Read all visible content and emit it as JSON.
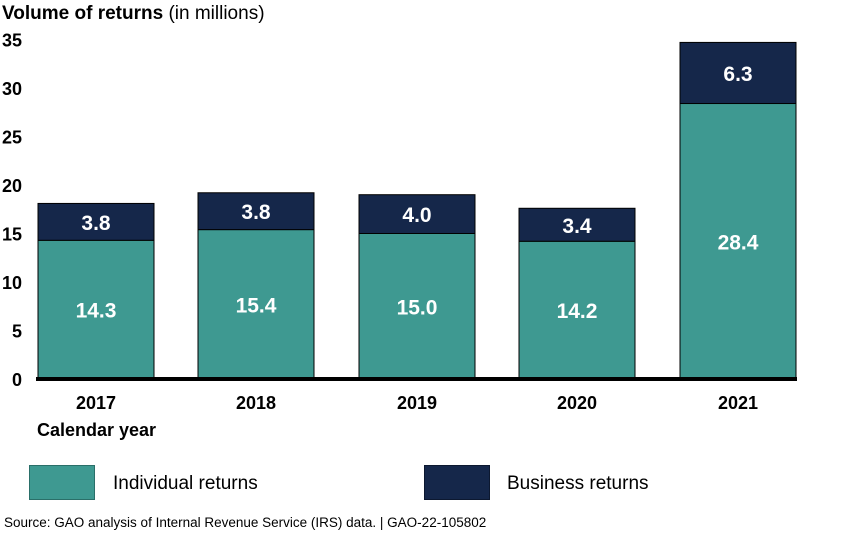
{
  "chart_data": {
    "type": "bar",
    "stacked": true,
    "title": "Volume of returns",
    "title_suffix": "(in millions)",
    "xlabel": "Calendar year",
    "ylabel": "",
    "categories": [
      "2017",
      "2018",
      "2019",
      "2020",
      "2021"
    ],
    "series": [
      {
        "name": "Individual returns",
        "values": [
          14.3,
          15.4,
          15.0,
          14.2,
          28.4
        ],
        "color": "#3e9991",
        "label_color": "#ffffff"
      },
      {
        "name": "Business returns",
        "values": [
          3.8,
          3.8,
          4.0,
          3.4,
          6.3
        ],
        "color": "#15274a",
        "label_color": "#ffffff"
      }
    ],
    "data_labels": [
      [
        "14.3",
        "15.4",
        "15.0",
        "14.2",
        "28.4"
      ],
      [
        "3.8",
        "3.8",
        "4.0",
        "3.4",
        "6.3"
      ]
    ],
    "ylim": [
      0,
      35
    ],
    "yticks": [
      "0",
      "5",
      "10",
      "15",
      "20",
      "25",
      "30",
      "35"
    ],
    "grid": false,
    "legend_position": "bottom"
  },
  "source_note": "Source: GAO analysis of Internal Revenue Service (IRS) data.  |  GAO-22-105802"
}
